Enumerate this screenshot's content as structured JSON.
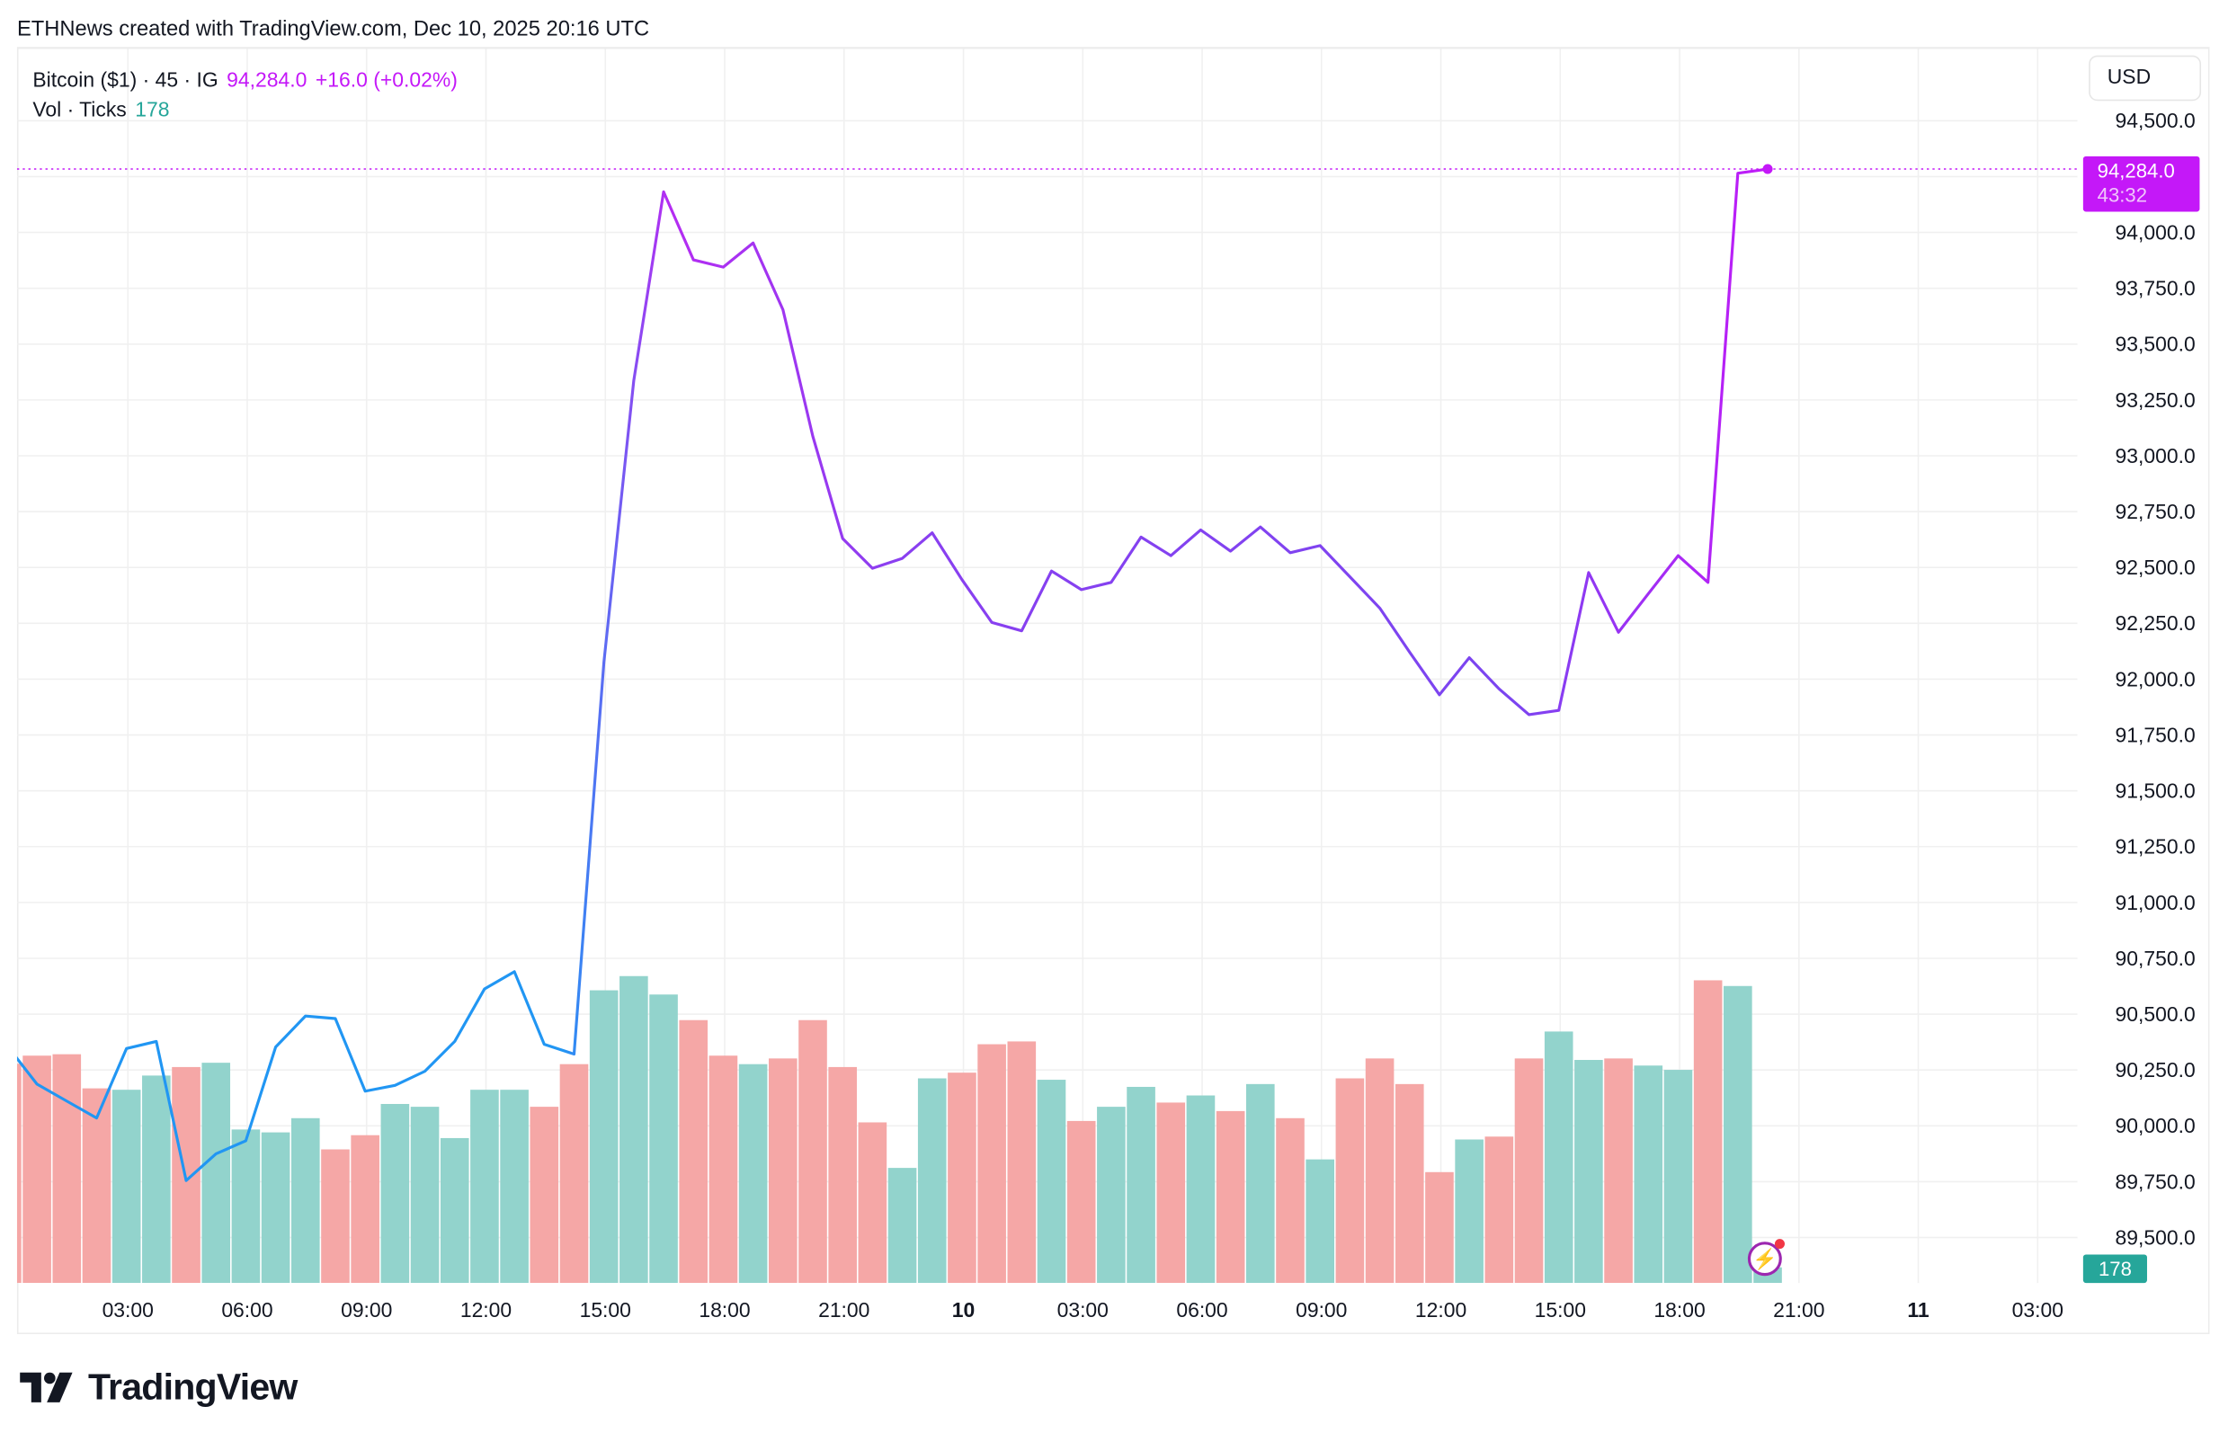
{
  "header": {
    "title": "ETHNews created with TradingView.com, Dec 10, 2025 20:16 UTC"
  },
  "legend": {
    "symbol": "Bitcoin ($1) · 45 · IG",
    "price": "94,284.0",
    "change": "+16.0 (+0.02%)",
    "vol_label": "Vol · Ticks",
    "vol_value": "178"
  },
  "price_axis": {
    "currency_button": "USD",
    "last_price_tag": "94,284.0",
    "countdown": "43:32",
    "volume_tag": "178"
  },
  "brand": {
    "name": "TradingView"
  },
  "colors": {
    "up": "#26a69a",
    "down": "#ef5350",
    "up_bar": "#92d3cc",
    "down_bar": "#f5a7a6",
    "line_start": "#2196f3",
    "line_mid": "#7b45f0",
    "line_end": "#c418f8",
    "last_price": "#c418f8"
  },
  "icons": {
    "flash": "lightning-bolt-icon"
  },
  "chart_data": {
    "type": "line",
    "interval": "45 min",
    "start": "Dec 9, 2025 00:00",
    "ylim": [
      89375,
      94700
    ],
    "y_ticks": [
      "89,500.0",
      "89,750.0",
      "90,000.0",
      "90,250.0",
      "90,500.0",
      "90,750.0",
      "91,000.0",
      "91,250.0",
      "91,500.0",
      "91,750.0",
      "92,000.0",
      "92,250.0",
      "92,500.0",
      "92,750.0",
      "93,000.0",
      "93,250.0",
      "93,500.0",
      "93,750.0",
      "94,000.0",
      "94,250.0",
      "94,500.0"
    ],
    "x_ticks": [
      {
        "label": "03:00",
        "bold": false
      },
      {
        "label": "06:00",
        "bold": false
      },
      {
        "label": "09:00",
        "bold": false
      },
      {
        "label": "12:00",
        "bold": false
      },
      {
        "label": "15:00",
        "bold": false
      },
      {
        "label": "18:00",
        "bold": false
      },
      {
        "label": "21:00",
        "bold": false
      },
      {
        "label": "10",
        "bold": true
      },
      {
        "label": "03:00",
        "bold": false
      },
      {
        "label": "06:00",
        "bold": false
      },
      {
        "label": "09:00",
        "bold": false
      },
      {
        "label": "12:00",
        "bold": false
      },
      {
        "label": "15:00",
        "bold": false
      },
      {
        "label": "18:00",
        "bold": false
      },
      {
        "label": "21:00",
        "bold": false
      },
      {
        "label": "11",
        "bold": true
      },
      {
        "label": "03:00",
        "bold": false
      }
    ],
    "grid": true,
    "series": [
      {
        "values": [
          90359,
          90187,
          90111,
          90035,
          90346,
          90378,
          89755,
          89875,
          89933,
          90353,
          90492,
          90480,
          90155,
          90181,
          90244,
          90378,
          90613,
          90690,
          90365,
          90321,
          92076,
          93336,
          94182,
          93877,
          93845,
          93953,
          93654,
          93088,
          92630,
          92496,
          92541,
          92655,
          92445,
          92254,
          92216,
          92484,
          92401,
          92433,
          92636,
          92553,
          92668,
          92573,
          92681,
          92566,
          92598,
          92458,
          92318,
          92121,
          91930,
          92096,
          91956,
          91841,
          91860,
          92477,
          92210,
          92382,
          92553,
          92433,
          94265,
          94284
        ]
      }
    ],
    "volume": {
      "label": "Vol · Ticks",
      "values": [
        2500,
        2592,
        2608,
        2219,
        2203,
        2365,
        2462,
        2511,
        1750,
        1717,
        1879,
        1523,
        1685,
        2041,
        2009,
        1652,
        2203,
        2203,
        2009,
        2495,
        3337,
        3499,
        3289,
        2997,
        2592,
        2495,
        2560,
        2997,
        2462,
        1831,
        1312,
        2333,
        2398,
        2722,
        2754,
        2317,
        1847,
        2009,
        2236,
        2057,
        2138,
        1960,
        2268,
        1879,
        1409,
        2333,
        2560,
        2268,
        1264,
        1636,
        1669,
        2560,
        2867,
        2543,
        2560,
        2479,
        2430,
        3451,
        3386,
        178
      ],
      "direction": [
        "down",
        "down",
        "down",
        "down",
        "up",
        "up",
        "down",
        "up",
        "up",
        "up",
        "up",
        "down",
        "down",
        "up",
        "up",
        "up",
        "up",
        "up",
        "down",
        "down",
        "up",
        "up",
        "up",
        "down",
        "down",
        "up",
        "down",
        "down",
        "down",
        "down",
        "up",
        "up",
        "down",
        "down",
        "down",
        "up",
        "down",
        "up",
        "up",
        "down",
        "up",
        "down",
        "up",
        "down",
        "up",
        "down",
        "down",
        "down",
        "down",
        "up",
        "down",
        "down",
        "up",
        "up",
        "down",
        "up",
        "up",
        "down",
        "up",
        "up"
      ]
    }
  }
}
